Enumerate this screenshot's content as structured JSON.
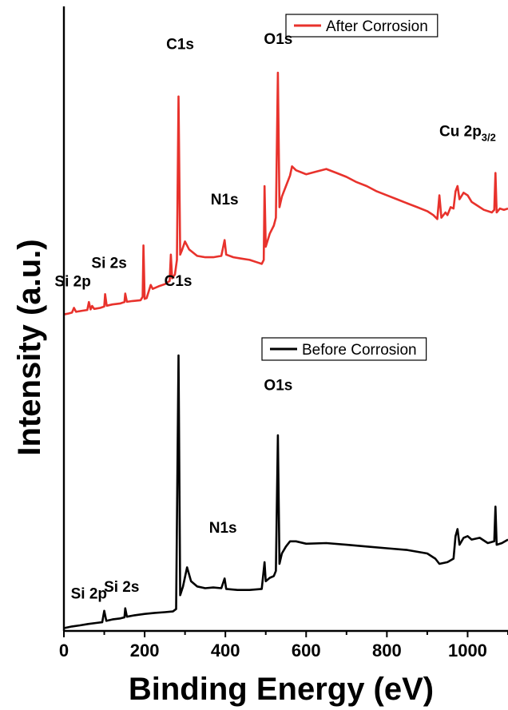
{
  "chart_data": {
    "type": "line",
    "xlabel": "Binding Energy (eV)",
    "ylabel": "Intensity (a.u.)",
    "xlim": [
      0,
      1100
    ],
    "x_ticks": [
      "0",
      "200",
      "400",
      "600",
      "800",
      "1000"
    ],
    "y_ticks_shown": false,
    "grid": false,
    "series": [
      {
        "name": "After Corrosion",
        "color": "#e8322c",
        "legend_position": "top-right",
        "points": [
          [
            0,
            1.3
          ],
          [
            10,
            1.6
          ],
          [
            20,
            2.0
          ],
          [
            25,
            3.8
          ],
          [
            30,
            2.3
          ],
          [
            45,
            2.7
          ],
          [
            58,
            3.0
          ],
          [
            62,
            6.0
          ],
          [
            66,
            3.2
          ],
          [
            70,
            4.5
          ],
          [
            75,
            3.4
          ],
          [
            90,
            3.8
          ],
          [
            100,
            4.3
          ],
          [
            102,
            9.0
          ],
          [
            106,
            4.6
          ],
          [
            120,
            5.1
          ],
          [
            140,
            5.5
          ],
          [
            150,
            6.0
          ],
          [
            152,
            9.2
          ],
          [
            156,
            6.1
          ],
          [
            170,
            6.4
          ],
          [
            190,
            6.7
          ],
          [
            195,
            8.0
          ],
          [
            197,
            27.5
          ],
          [
            200,
            7.2
          ],
          [
            205,
            7.5
          ],
          [
            215,
            12.5
          ],
          [
            220,
            11.0
          ],
          [
            235,
            12.0
          ],
          [
            250,
            12.8
          ],
          [
            262,
            14.0
          ],
          [
            265,
            24.0
          ],
          [
            268,
            15.0
          ],
          [
            275,
            16.5
          ],
          [
            280,
            22.0
          ],
          [
            284,
            84.0
          ],
          [
            288,
            24.0
          ],
          [
            292,
            25.5
          ],
          [
            300,
            29.0
          ],
          [
            310,
            26.0
          ],
          [
            330,
            23.5
          ],
          [
            350,
            23.0
          ],
          [
            370,
            23.0
          ],
          [
            390,
            23.5
          ],
          [
            398,
            29.5
          ],
          [
            402,
            24.0
          ],
          [
            420,
            23.0
          ],
          [
            440,
            22.5
          ],
          [
            460,
            22.0
          ],
          [
            480,
            21.0
          ],
          [
            490,
            20.5
          ],
          [
            495,
            22.0
          ],
          [
            497,
            50.0
          ],
          [
            500,
            27.0
          ],
          [
            510,
            32.0
          ],
          [
            520,
            35.0
          ],
          [
            525,
            38.0
          ],
          [
            530,
            93.0
          ],
          [
            534,
            42.0
          ],
          [
            540,
            46.0
          ],
          [
            550,
            50.0
          ],
          [
            560,
            54.0
          ],
          [
            565,
            57.5
          ],
          [
            575,
            56.0
          ],
          [
            600,
            54.5
          ],
          [
            625,
            55.5
          ],
          [
            650,
            56.5
          ],
          [
            675,
            55.0
          ],
          [
            700,
            53.5
          ],
          [
            725,
            51.5
          ],
          [
            750,
            50.0
          ],
          [
            775,
            48.0
          ],
          [
            800,
            46.5
          ],
          [
            825,
            45.0
          ],
          [
            850,
            43.5
          ],
          [
            875,
            42.0
          ],
          [
            900,
            40.5
          ],
          [
            915,
            39.0
          ],
          [
            925,
            37.5
          ],
          [
            930,
            46.5
          ],
          [
            935,
            38.0
          ],
          [
            945,
            40.0
          ],
          [
            950,
            39.0
          ],
          [
            958,
            42.0
          ],
          [
            965,
            41.5
          ],
          [
            970,
            48.0
          ],
          [
            975,
            50.0
          ],
          [
            980,
            45.0
          ],
          [
            990,
            47.5
          ],
          [
            1000,
            46.5
          ],
          [
            1010,
            44.0
          ],
          [
            1020,
            43.0
          ],
          [
            1040,
            41.0
          ],
          [
            1060,
            40.0
          ],
          [
            1066,
            41.0
          ],
          [
            1069,
            55.0
          ],
          [
            1072,
            40.0
          ],
          [
            1080,
            41.5
          ],
          [
            1090,
            41.0
          ],
          [
            1100,
            41.5
          ]
        ]
      },
      {
        "name": "Before Corrosion",
        "color": "#000000",
        "legend_position": "top-right",
        "points": [
          [
            0,
            -1.5
          ],
          [
            20,
            -1.0
          ],
          [
            40,
            -0.7
          ],
          [
            60,
            -0.3
          ],
          [
            80,
            0.0
          ],
          [
            95,
            0.2
          ],
          [
            100,
            3.5
          ],
          [
            105,
            0.6
          ],
          [
            120,
            1.0
          ],
          [
            140,
            1.3
          ],
          [
            150,
            1.6
          ],
          [
            152,
            4.2
          ],
          [
            156,
            1.8
          ],
          [
            175,
            2.2
          ],
          [
            200,
            2.6
          ],
          [
            225,
            2.9
          ],
          [
            250,
            3.1
          ],
          [
            270,
            3.3
          ],
          [
            278,
            4.0
          ],
          [
            284,
            77.0
          ],
          [
            288,
            8.0
          ],
          [
            295,
            10.5
          ],
          [
            305,
            16.0
          ],
          [
            315,
            12.0
          ],
          [
            330,
            10.5
          ],
          [
            350,
            10.0
          ],
          [
            370,
            10.2
          ],
          [
            390,
            10.0
          ],
          [
            398,
            12.8
          ],
          [
            402,
            9.8
          ],
          [
            430,
            9.5
          ],
          [
            460,
            9.5
          ],
          [
            490,
            9.8
          ],
          [
            497,
            17.5
          ],
          [
            500,
            12.0
          ],
          [
            510,
            13.0
          ],
          [
            520,
            13.5
          ],
          [
            525,
            15.0
          ],
          [
            530,
            54.0
          ],
          [
            534,
            17.0
          ],
          [
            540,
            20.0
          ],
          [
            550,
            22.0
          ],
          [
            560,
            23.5
          ],
          [
            575,
            23.5
          ],
          [
            600,
            22.8
          ],
          [
            650,
            23.0
          ],
          [
            700,
            22.5
          ],
          [
            750,
            22.0
          ],
          [
            800,
            21.5
          ],
          [
            850,
            21.0
          ],
          [
            900,
            20.0
          ],
          [
            920,
            18.5
          ],
          [
            930,
            17.0
          ],
          [
            950,
            17.5
          ],
          [
            965,
            18.5
          ],
          [
            970,
            25.0
          ],
          [
            975,
            27.0
          ],
          [
            980,
            22.5
          ],
          [
            990,
            24.5
          ],
          [
            1000,
            25.0
          ],
          [
            1010,
            24.0
          ],
          [
            1030,
            24.5
          ],
          [
            1050,
            23.0
          ],
          [
            1066,
            23.5
          ],
          [
            1069,
            33.5
          ],
          [
            1072,
            22.5
          ],
          [
            1085,
            23.0
          ],
          [
            1100,
            24.0
          ]
        ]
      }
    ],
    "annotations": [
      {
        "series": "After Corrosion",
        "text": "Si 2p",
        "x": 22,
        "y": 12
      },
      {
        "series": "After Corrosion",
        "text": "Si 2s",
        "x": 112,
        "y": 19
      },
      {
        "series": "After Corrosion",
        "text": "C1s",
        "x": 288,
        "y": 102
      },
      {
        "series": "After Corrosion",
        "text": "N1s",
        "x": 398,
        "y": 43
      },
      {
        "series": "After Corrosion",
        "text": "O1s",
        "x": 531,
        "y": 104
      },
      {
        "series": "After Corrosion",
        "text": "Cu 2p",
        "sub": "3/2",
        "x": 1000,
        "y": 69
      },
      {
        "series": "Before Corrosion",
        "text": "C1s",
        "x": 283,
        "y": 97
      },
      {
        "series": "Before Corrosion",
        "text": "O1s",
        "x": 531,
        "y": 67
      },
      {
        "series": "Before Corrosion",
        "text": "N1s",
        "x": 394,
        "y": 26
      },
      {
        "series": "Before Corrosion",
        "text": "Si 2p",
        "x": 62,
        "y": 7
      },
      {
        "series": "Before Corrosion",
        "text": "Si 2s",
        "x": 143,
        "y": 9
      }
    ]
  }
}
